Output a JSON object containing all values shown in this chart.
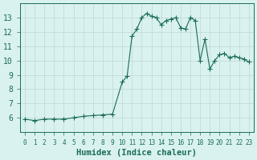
{
  "title": "",
  "xlabel": "Humidex (Indice chaleur)",
  "ylabel": "",
  "x_values": [
    0,
    1,
    2,
    3,
    4,
    5,
    6,
    7,
    8,
    9,
    10,
    10.5,
    11,
    11.5,
    12,
    12.5,
    13,
    13.5,
    14,
    14.5,
    15,
    15.5,
    16,
    16.5,
    17,
    17.5,
    18,
    18.5,
    19,
    19.5,
    20,
    20.5,
    21,
    21.5,
    22,
    22.5,
    23
  ],
  "y_values": [
    5.9,
    5.8,
    5.9,
    5.9,
    5.9,
    6.0,
    6.1,
    6.15,
    6.2,
    6.25,
    8.5,
    8.9,
    11.7,
    12.2,
    13.0,
    13.3,
    13.1,
    13.0,
    12.5,
    12.8,
    12.9,
    13.0,
    12.3,
    12.2,
    13.0,
    12.8,
    10.0,
    11.5,
    9.4,
    10.0,
    10.4,
    10.5,
    10.2,
    10.3,
    10.2,
    10.1,
    9.9
  ],
  "xlim": [
    -0.5,
    23.5
  ],
  "ylim": [
    5,
    14
  ],
  "yticks": [
    6,
    7,
    8,
    9,
    10,
    11,
    12,
    13
  ],
  "xticks": [
    0,
    1,
    2,
    3,
    4,
    5,
    6,
    7,
    8,
    9,
    10,
    11,
    12,
    13,
    14,
    15,
    16,
    17,
    18,
    19,
    20,
    21,
    22,
    23
  ],
  "line_color": "#1a6b5a",
  "marker_color": "#1a6b5a",
  "bg_color": "#d9f2ef",
  "grid_color": "#c0d8d5",
  "tick_label_color": "#1a6b5a",
  "xlabel_color": "#1a6b5a",
  "figure_bg": "#d9f2ef"
}
